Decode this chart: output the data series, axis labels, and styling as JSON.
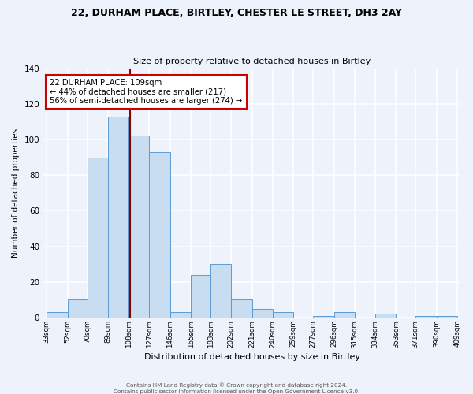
{
  "title1": "22, DURHAM PLACE, BIRTLEY, CHESTER LE STREET, DH3 2AY",
  "title2": "Size of property relative to detached houses in Birtley",
  "xlabel": "Distribution of detached houses by size in Birtley",
  "ylabel": "Number of detached properties",
  "bin_edges": [
    33,
    52,
    70,
    89,
    108,
    127,
    146,
    165,
    183,
    202,
    221,
    240,
    259,
    277,
    296,
    315,
    334,
    353,
    371,
    390,
    409
  ],
  "counts": [
    3,
    10,
    90,
    113,
    102,
    93,
    3,
    24,
    30,
    10,
    5,
    3,
    0,
    1,
    3,
    0,
    2,
    0,
    1,
    1
  ],
  "bar_facecolor": "#c8ddf0",
  "bar_edgecolor": "#5b9bd5",
  "property_value": 109,
  "vline_color": "#8b0000",
  "annotation_text": "22 DURHAM PLACE: 109sqm\n← 44% of detached houses are smaller (217)\n56% of semi-detached houses are larger (274) →",
  "annotation_box_edgecolor": "#cc0000",
  "annotation_box_facecolor": "#ffffff",
  "footer1": "Contains HM Land Registry data © Crown copyright and database right 2024.",
  "footer2": "Contains public sector information licensed under the Open Government Licence v3.0.",
  "ylim": [
    0,
    140
  ],
  "background_color": "#eef2fa",
  "grid_color": "#ffffff",
  "yticks": [
    0,
    20,
    40,
    60,
    80,
    100,
    120,
    140
  ]
}
